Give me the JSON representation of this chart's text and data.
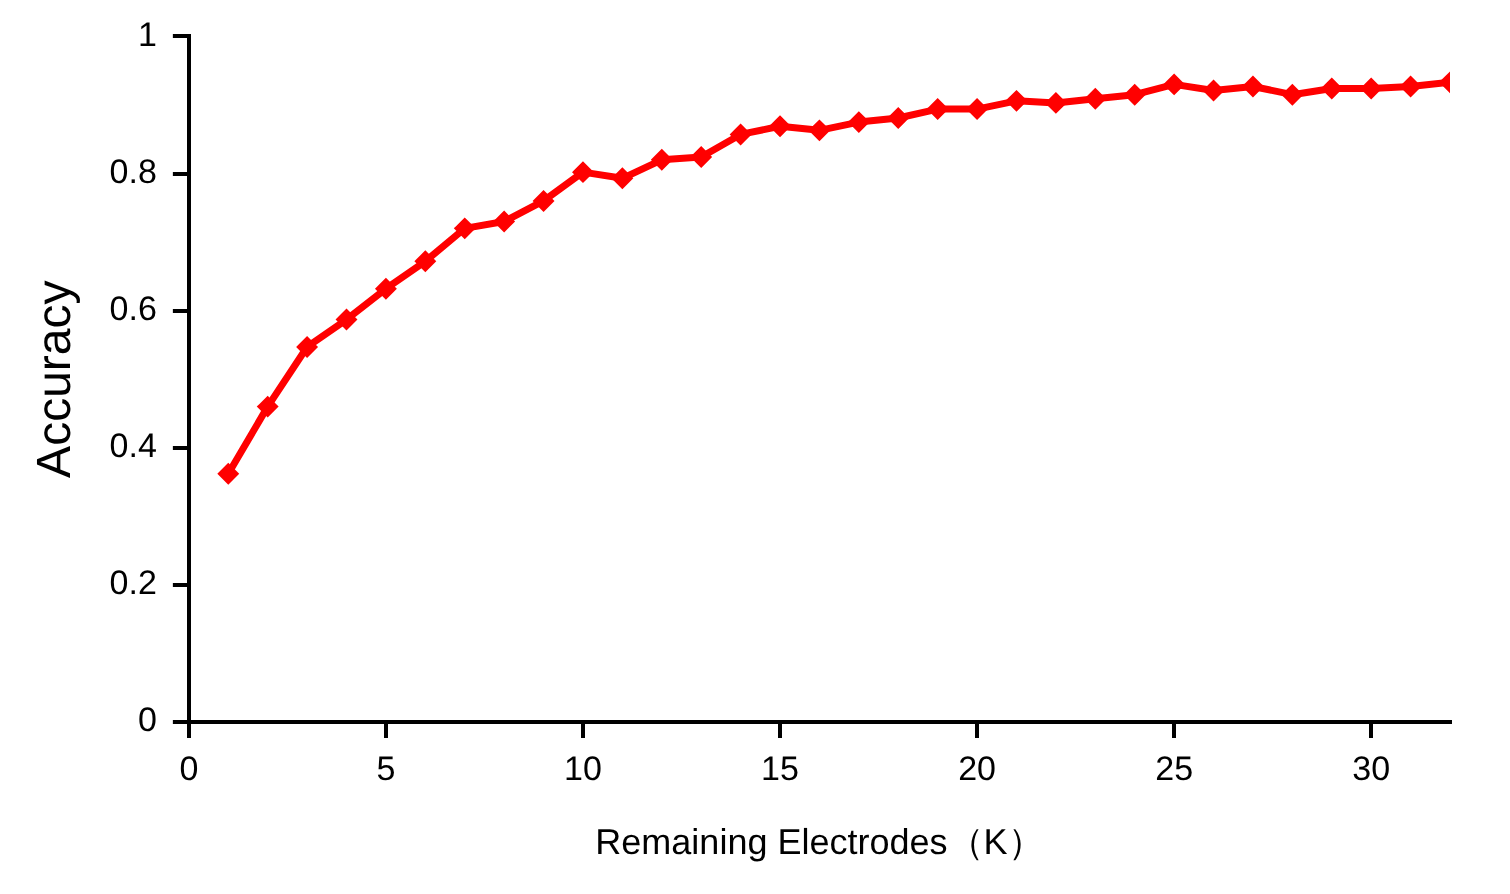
{
  "chart_data": {
    "type": "line",
    "xlabel": "Remaining Electrodes（K）",
    "ylabel": "Accuracy",
    "x": [
      1,
      2,
      3,
      4,
      5,
      6,
      7,
      8,
      9,
      10,
      11,
      12,
      13,
      14,
      15,
      16,
      17,
      18,
      19,
      20,
      21,
      22,
      23,
      24,
      25,
      26,
      27,
      28,
      29,
      30,
      31,
      32
    ],
    "series": [
      {
        "color": "#ff0000",
        "values": [
          0.362,
          0.46,
          0.547,
          0.587,
          0.632,
          0.672,
          0.72,
          0.73,
          0.76,
          0.802,
          0.793,
          0.82,
          0.824,
          0.857,
          0.869,
          0.863,
          0.875,
          0.881,
          0.894,
          0.894,
          0.906,
          0.903,
          0.909,
          0.915,
          0.93,
          0.921,
          0.927,
          0.915,
          0.924,
          0.924,
          0.927,
          0.933
        ]
      }
    ],
    "xlim": [
      0,
      32
    ],
    "xticks": [
      0,
      5,
      10,
      15,
      20,
      25,
      30
    ],
    "ylim": [
      0,
      1
    ],
    "yticks": [
      0,
      0.2,
      0.4,
      0.6,
      0.8,
      1
    ],
    "grid": false,
    "legend": false,
    "marker": "diamond",
    "line_style": "solid"
  }
}
